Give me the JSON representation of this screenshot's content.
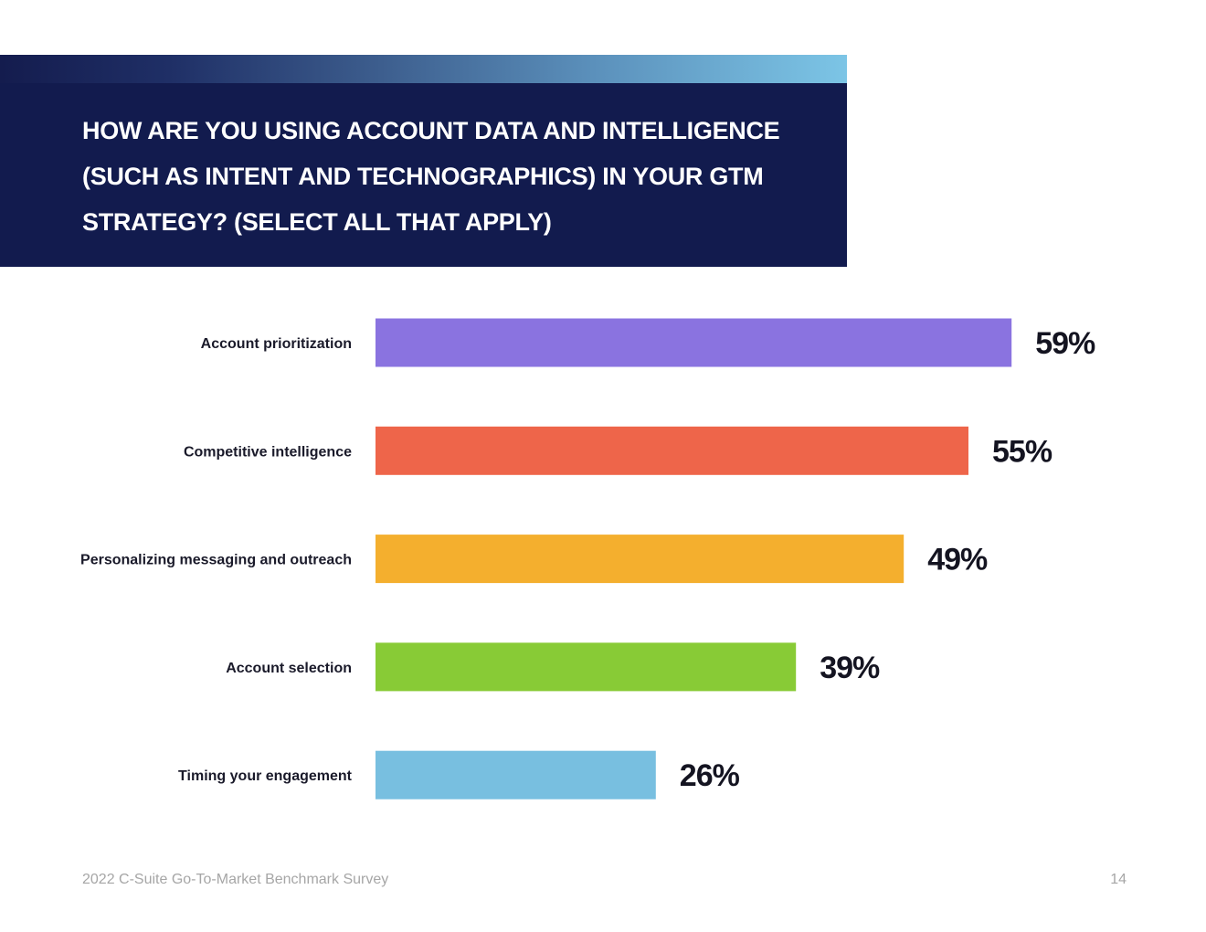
{
  "header": {
    "title": "How are you using account data and intelligence (such as intent and technographics) in your GTM strategy? (Select all that apply)"
  },
  "chart_data": {
    "type": "bar",
    "orientation": "horizontal",
    "title": "How are you using account data and intelligence (such as intent and technographics) in your GTM strategy? (Select all that apply)",
    "categories": [
      "Account prioritization",
      "Competitive intelligence",
      "Personalizing messaging and outreach",
      "Account selection",
      "Timing your engagement"
    ],
    "values": [
      59,
      55,
      49,
      39,
      26
    ],
    "value_labels": [
      "59%",
      "55%",
      "49%",
      "39%",
      "26%"
    ],
    "colors": [
      "#8a73e0",
      "#ee654a",
      "#f4af2e",
      "#88cb36",
      "#78bfe0"
    ],
    "unit": "%",
    "xlim": [
      0,
      100
    ],
    "grid": false,
    "legend": "none",
    "xlabel": "",
    "ylabel": ""
  },
  "footer": {
    "source": "2022 C-Suite Go-To-Market Benchmark Survey",
    "page_number": "14"
  }
}
